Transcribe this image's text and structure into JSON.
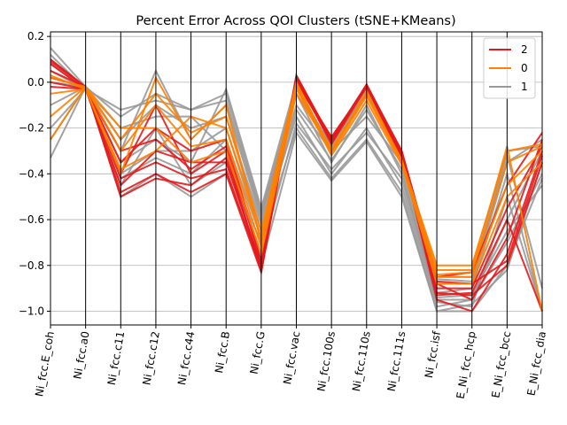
{
  "chart_data": {
    "type": "parallel-coordinates",
    "title": "Percent Error Across QOI Clusters (tSNE+KMeans)",
    "axes": [
      "Ni_fcc.E_coh",
      "Ni_fcc.a0",
      "Ni_fcc.c11",
      "Ni_fcc.c12",
      "Ni_fcc.c44",
      "Ni_fcc.B",
      "Ni_fcc.G",
      "Ni_fcc.vac",
      "Ni_fcc.100s",
      "Ni_fcc.110s",
      "Ni_fcc.111s",
      "Ni_fcc.isf",
      "E_Ni_fcc_hcp",
      "E_Ni_fcc_bcc",
      "E_Ni_fcc_dia"
    ],
    "ylim": [
      -1.06,
      0.22
    ],
    "yticks": [
      0.2,
      0.0,
      -0.2,
      -0.4,
      -0.6,
      -0.8,
      -1.0
    ],
    "ytick_labels": [
      "0.2",
      "0.0",
      "−0.2",
      "−0.4",
      "−0.6",
      "−0.8",
      "−1.0"
    ],
    "grid": "horizontal",
    "legend_position": "top-right",
    "series": [
      {
        "name": "1",
        "color": "#999999",
        "lines": [
          [
            0.15,
            -0.02,
            -0.15,
            -0.05,
            -0.12,
            -0.05,
            -0.57,
            -0.02,
            -0.28,
            -0.03,
            -0.32,
            -0.88,
            -0.88,
            -0.35,
            -0.25
          ],
          [
            0.12,
            -0.03,
            -0.3,
            0.05,
            -0.25,
            -0.1,
            -0.6,
            -0.05,
            -0.35,
            -0.1,
            -0.4,
            -0.95,
            -0.95,
            -0.6,
            -0.3
          ],
          [
            0.05,
            -0.03,
            -0.45,
            -0.2,
            -0.45,
            -0.35,
            -0.7,
            -0.2,
            -0.42,
            -0.25,
            -0.48,
            -1.0,
            -1.0,
            -0.8,
            -0.42
          ],
          [
            -0.33,
            -0.02,
            -0.4,
            -0.3,
            -0.3,
            -0.2,
            -0.65,
            -0.15,
            -0.4,
            -0.2,
            -0.45,
            -0.98,
            -0.95,
            -0.7,
            -0.4
          ],
          [
            -0.2,
            -0.03,
            -0.25,
            -0.1,
            -0.2,
            -0.15,
            -0.62,
            -0.1,
            -0.3,
            -0.15,
            -0.35,
            -0.92,
            -0.9,
            -0.4,
            -1.0
          ],
          [
            0.0,
            -0.02,
            -0.35,
            -0.25,
            -0.35,
            -0.03,
            -0.55,
            0.0,
            -0.25,
            -0.05,
            -0.3,
            -0.85,
            -0.85,
            -0.3,
            -0.28
          ],
          [
            0.08,
            -0.03,
            -0.2,
            -0.15,
            -0.15,
            -0.3,
            -0.75,
            -0.18,
            -0.38,
            -0.22,
            -0.42,
            -0.96,
            -0.98,
            -0.5,
            -1.0
          ],
          [
            -0.1,
            -0.02,
            -0.5,
            -0.4,
            -0.5,
            -0.4,
            -0.8,
            -0.22,
            -0.43,
            -0.26,
            -0.5,
            -1.0,
            -0.97,
            -0.82,
            -0.35
          ],
          [
            0.1,
            -0.03,
            -0.12,
            -0.08,
            -0.12,
            -0.08,
            -0.58,
            -0.05,
            -0.27,
            -0.04,
            -0.33,
            -0.86,
            -0.87,
            -0.32,
            -0.9
          ],
          [
            -0.25,
            -0.02,
            -0.42,
            -0.33,
            -0.4,
            -0.25,
            -0.68,
            -0.12,
            -0.34,
            -0.12,
            -0.38,
            -0.94,
            -0.93,
            -0.65,
            -0.45
          ]
        ]
      },
      {
        "name": "2",
        "color": "#e41a1c",
        "lines": [
          [
            0.1,
            -0.02,
            -0.4,
            -0.1,
            -0.4,
            -0.3,
            -0.83,
            0.03,
            -0.25,
            -0.01,
            -0.3,
            -0.85,
            -0.83,
            -0.45,
            -0.22
          ],
          [
            0.08,
            -0.03,
            -0.45,
            -0.3,
            -0.35,
            -0.35,
            -0.8,
            0.02,
            -0.27,
            -0.02,
            -0.32,
            -0.9,
            -0.9,
            -0.55,
            -0.28
          ],
          [
            0.05,
            -0.02,
            -0.48,
            -0.4,
            -0.48,
            -0.4,
            -0.83,
            0.01,
            -0.26,
            -0.01,
            -0.31,
            -0.95,
            -1.0,
            -0.75,
            -0.3
          ],
          [
            0.0,
            -0.03,
            -0.35,
            -0.2,
            -0.3,
            -0.25,
            -0.78,
            0.0,
            -0.24,
            -0.02,
            -0.33,
            -0.92,
            -0.93,
            -0.8,
            -0.35
          ],
          [
            0.02,
            -0.02,
            -0.42,
            -0.35,
            -0.42,
            -0.38,
            -0.82,
            0.02,
            -0.25,
            -0.01,
            -0.32,
            -0.88,
            -0.95,
            -0.68,
            -0.25
          ],
          [
            -0.02,
            -0.03,
            -0.3,
            -0.25,
            -0.38,
            -0.28,
            -0.79,
            0.01,
            -0.24,
            -0.02,
            -0.3,
            -0.93,
            -0.92,
            -0.6,
            -1.0
          ],
          [
            0.09,
            -0.02,
            -0.5,
            -0.42,
            -0.45,
            -0.33,
            -0.81,
            0.03,
            -0.26,
            -0.01,
            -0.31,
            -0.87,
            -0.88,
            -0.78,
            -0.32
          ]
        ]
      },
      {
        "name": "0",
        "color": "#ff7f00",
        "lines": [
          [
            0.02,
            -0.02,
            -0.25,
            -0.05,
            -0.22,
            -0.15,
            -0.65,
            0.0,
            -0.3,
            -0.05,
            -0.34,
            -0.8,
            -0.8,
            -0.3,
            -0.27
          ],
          [
            -0.05,
            -0.03,
            -0.4,
            0.02,
            -0.25,
            -0.1,
            -0.7,
            -0.02,
            -0.32,
            -0.08,
            -0.36,
            -0.85,
            -0.85,
            -0.45,
            -0.3
          ],
          [
            -0.25,
            -0.02,
            -0.2,
            -0.2,
            -0.35,
            -0.3,
            -0.75,
            -0.05,
            -0.3,
            -0.04,
            -0.35,
            -0.82,
            -0.82,
            -0.28,
            -1.0
          ],
          [
            0.03,
            -0.03,
            -0.38,
            -0.3,
            -0.15,
            -0.2,
            -0.68,
            -0.01,
            -0.31,
            -0.06,
            -0.35,
            -0.88,
            -0.88,
            -0.5,
            -0.35
          ],
          [
            -0.15,
            -0.02,
            -0.3,
            -0.1,
            -0.28,
            -0.25,
            -0.72,
            -0.03,
            -0.29,
            -0.05,
            -0.34,
            -0.84,
            -0.83,
            -0.35,
            -0.28
          ]
        ]
      }
    ],
    "legend": [
      {
        "label": "2",
        "color": "#e41a1c"
      },
      {
        "label": "0",
        "color": "#ff7f00"
      },
      {
        "label": "1",
        "color": "#999999"
      }
    ]
  }
}
